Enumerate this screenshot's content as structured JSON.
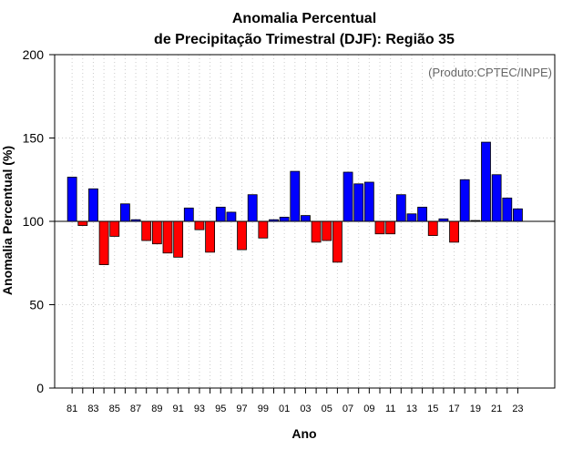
{
  "chart_data": {
    "type": "bar",
    "title_line1": "Anomalia Percentual",
    "title_line2": "de Precipitação Trimestral (DJF): Região 35",
    "xlabel": "Ano",
    "ylabel": "Anomalia Percentual (%)",
    "credit": "(Produto:CPTEC/INPE)",
    "baseline": 100,
    "ylim": [
      0,
      200
    ],
    "yticks": [
      0,
      50,
      100,
      150,
      200
    ],
    "xtick_labels": [
      "81",
      "83",
      "85",
      "87",
      "89",
      "91",
      "93",
      "95",
      "97",
      "99",
      "01",
      "03",
      "05",
      "07",
      "09",
      "11",
      "13",
      "15",
      "17",
      "19",
      "21",
      "23"
    ],
    "categories": [
      "1981",
      "1982",
      "1983",
      "1984",
      "1985",
      "1986",
      "1987",
      "1988",
      "1989",
      "1990",
      "1991",
      "1992",
      "1993",
      "1994",
      "1995",
      "1996",
      "1997",
      "1998",
      "1999",
      "2000",
      "2001",
      "2002",
      "2003",
      "2004",
      "2005",
      "2006",
      "2007",
      "2008",
      "2009",
      "2010",
      "2011",
      "2012",
      "2013",
      "2014",
      "2015",
      "2016",
      "2017",
      "2018",
      "2019",
      "2020",
      "2021",
      "2022",
      "2023"
    ],
    "values": [
      126.5,
      97.5,
      119.5,
      74,
      91,
      110.5,
      101,
      88.5,
      86.5,
      81,
      78.5,
      108,
      95,
      81.5,
      108.5,
      105.5,
      83,
      116,
      90,
      101,
      102.5,
      130,
      103.5,
      87.5,
      88.5,
      75.5,
      129.5,
      122.5,
      123.5,
      92.5,
      92.5,
      116,
      104.5,
      108.5,
      91.5,
      101.5,
      87.5,
      125,
      100.5,
      147.5,
      128,
      114,
      107.5
    ],
    "colors": {
      "above": "#0000ff",
      "below": "#ff0000",
      "grid": "#cccccc",
      "axis": "#000000",
      "credit": "#666666"
    }
  }
}
